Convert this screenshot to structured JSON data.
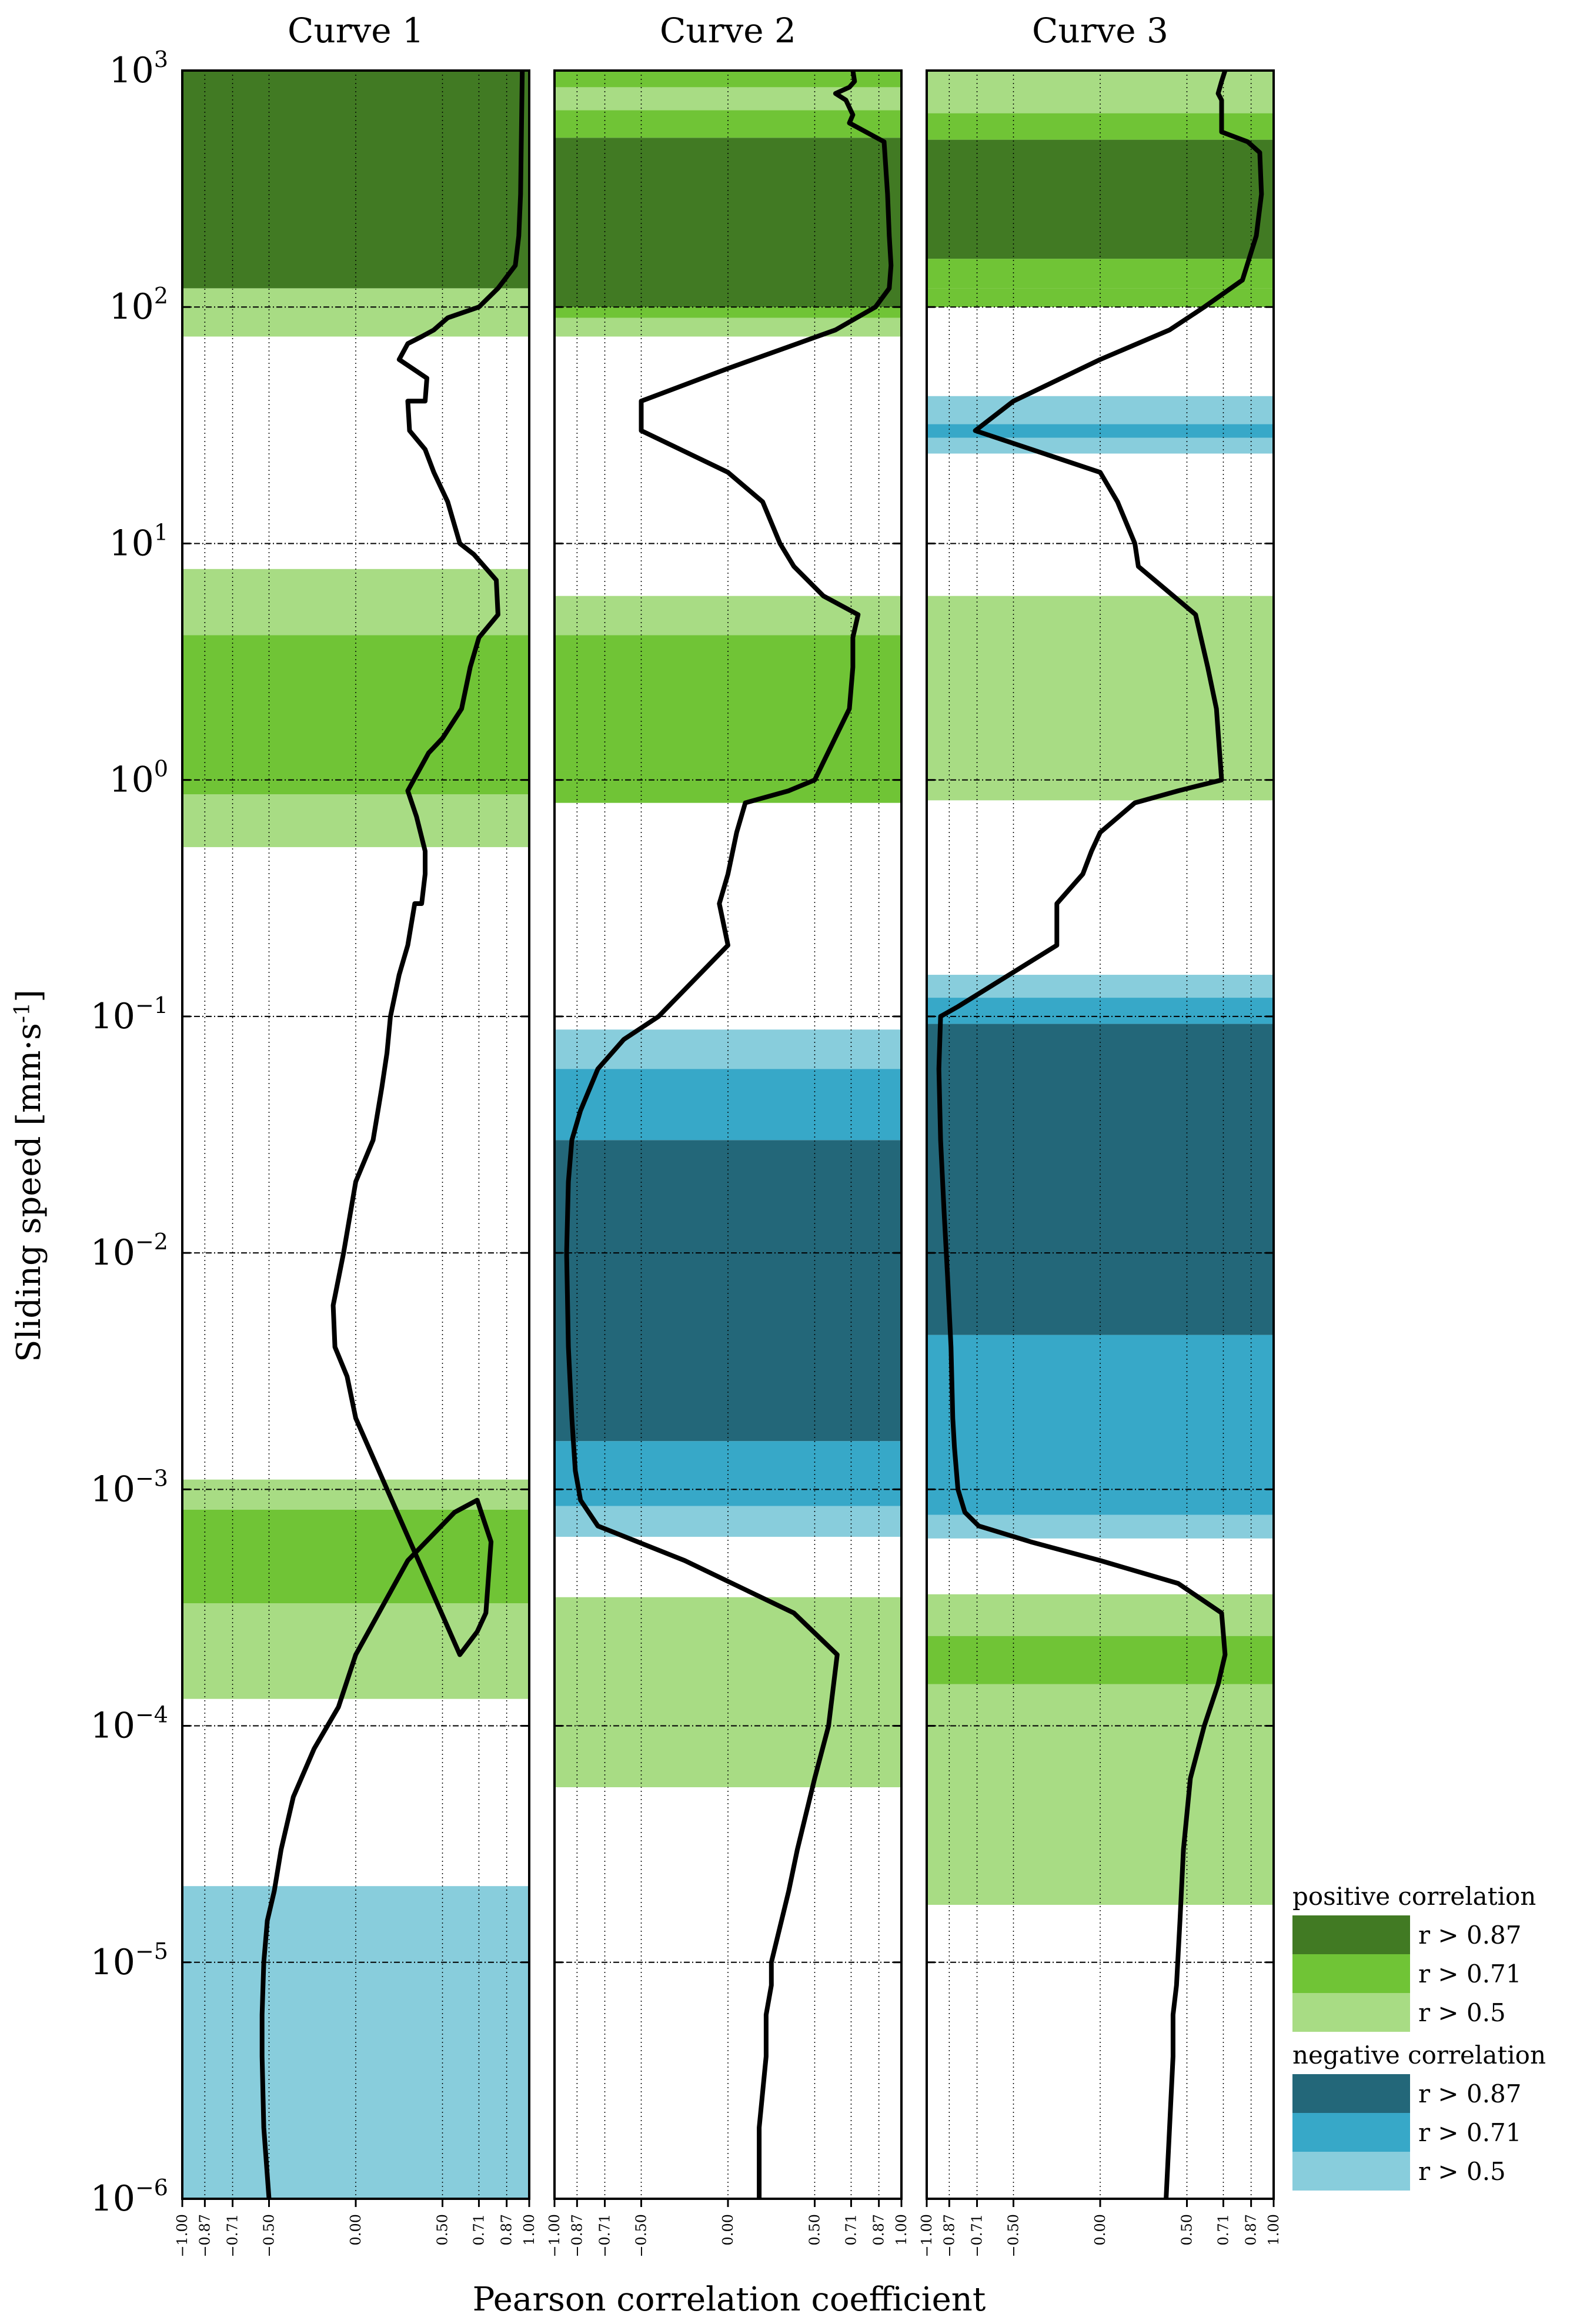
{
  "figure": {
    "ylabel_main": "Sliding speed [mm·s",
    "ylabel_sup": "-1",
    "ylabel_close": "]",
    "xlabel": "Pearson correlation coefficient"
  },
  "colors": {
    "pos_strong": "#417a23",
    "pos_medium": "#70c436",
    "pos_weak": "#a8dc84",
    "neg_strong": "#236779",
    "neg_medium": "#37a8c8",
    "neg_weak": "#88cddc",
    "curve": "#000000"
  },
  "legend": {
    "positive_title": "positive correlation",
    "negative_title": "negative correlation",
    "positive_items": [
      {
        "label": "r > 0.87",
        "color": "#417a23"
      },
      {
        "label": "r > 0.71",
        "color": "#70c436"
      },
      {
        "label": "r > 0.5",
        "color": "#a8dc84"
      }
    ],
    "negative_items": [
      {
        "label": "r > 0.87",
        "color": "#236779"
      },
      {
        "label": "r > 0.71",
        "color": "#37a8c8"
      },
      {
        "label": "r > 0.5",
        "color": "#88cddc"
      }
    ]
  },
  "chart_data": [
    {
      "type": "line",
      "title": "Curve 1",
      "xlabel": "Pearson correlation coefficient",
      "ylabel": "Sliding speed [mm·s-1]",
      "xlim": [
        -1.0,
        1.0
      ],
      "ylim": [
        1e-06,
        1000
      ],
      "yscale": "log",
      "x_ticks": [
        "-1.00",
        "-0.87",
        "-0.71",
        "-0.50",
        "0.00",
        "0.50",
        "0.71",
        "0.87",
        "1.00"
      ],
      "y_ticks": [
        {
          "base": "10",
          "exp": "−6"
        },
        {
          "base": "10",
          "exp": "−5"
        },
        {
          "base": "10",
          "exp": "−4"
        },
        {
          "base": "10",
          "exp": "−3"
        },
        {
          "base": "10",
          "exp": "−2"
        },
        {
          "base": "10",
          "exp": "−1"
        },
        {
          "base": "10",
          "exp": "0"
        },
        {
          "base": "10",
          "exp": "1"
        },
        {
          "base": "10",
          "exp": "2"
        },
        {
          "base": "10",
          "exp": "3"
        }
      ],
      "bands": [
        {
          "from": 75,
          "to": 120,
          "level": "pos_weak"
        },
        {
          "from": 120,
          "to": 1000,
          "level": "pos_strong"
        },
        {
          "from": 0.52,
          "to": 0.87,
          "level": "pos_weak"
        },
        {
          "from": 0.87,
          "to": 4.1,
          "level": "pos_medium"
        },
        {
          "from": 4.1,
          "to": 7.8,
          "level": "pos_weak"
        },
        {
          "from": 0.00013,
          "to": 0.00033,
          "level": "pos_weak"
        },
        {
          "from": 0.00033,
          "to": 0.00082,
          "level": "pos_medium"
        },
        {
          "from": 0.00082,
          "to": 0.0011,
          "level": "pos_weak"
        },
        {
          "from": 1e-06,
          "to": 2.1e-05,
          "level": "neg_weak"
        }
      ],
      "series": [
        {
          "x": [
            -0.5,
            -0.53,
            -0.54,
            -0.54,
            -0.53,
            -0.51,
            -0.47,
            -0.43,
            -0.36,
            -0.24,
            -0.1,
            0.0,
            0.3,
            0.57,
            0.7,
            0.78,
            0.75,
            0.7,
            0.6,
            0.0,
            -0.05,
            -0.12,
            -0.13,
            -0.07,
            0.0,
            0.1,
            0.15,
            0.18,
            0.2,
            0.25,
            0.3,
            0.34,
            0.38,
            0.4,
            0.4,
            0.35,
            0.3,
            0.42,
            0.5,
            0.61,
            0.66,
            0.71,
            0.82,
            0.81,
            0.68,
            0.6,
            0.53,
            0.45,
            0.4,
            0.31,
            0.3,
            0.4,
            0.41,
            0.25,
            0.3,
            0.38,
            0.45,
            0.53,
            0.71,
            0.82,
            0.92,
            0.94,
            0.95,
            0.96
          ],
          "y": [
            1e-06,
            2e-06,
            4e-06,
            6e-06,
            1e-05,
            1.5e-05,
            2e-05,
            3e-05,
            5e-05,
            8e-05,
            0.00012,
            0.0002,
            0.0005,
            0.0008,
            0.0009,
            0.0006,
            0.0003,
            0.00025,
            0.0002,
            0.002,
            0.003,
            0.004,
            0.006,
            0.01,
            0.02,
            0.03,
            0.05,
            0.07,
            0.1,
            0.15,
            0.2,
            0.3,
            0.3,
            0.4,
            0.5,
            0.7,
            0.9,
            1.3,
            1.5,
            2,
            3,
            4,
            5,
            7,
            9,
            10,
            15,
            20,
            25,
            30,
            40,
            40,
            50,
            60,
            70,
            75,
            80,
            90,
            100,
            120,
            150,
            200,
            300,
            1000
          ]
        }
      ]
    },
    {
      "type": "line",
      "title": "Curve 2",
      "xlim": [
        -1.0,
        1.0
      ],
      "ylim": [
        1e-06,
        1000
      ],
      "yscale": "log",
      "x_ticks": [
        "-1.00",
        "-0.87",
        "-0.71",
        "-0.50",
        "0.00",
        "0.50",
        "0.71",
        "0.87",
        "1.00"
      ],
      "bands": [
        {
          "from": 5.5e-05,
          "to": 0.00035,
          "level": "pos_weak"
        },
        {
          "from": 0.8,
          "to": 1.1,
          "level": "pos_medium"
        },
        {
          "from": 1.1,
          "to": 4.1,
          "level": "pos_medium"
        },
        {
          "from": 4.1,
          "to": 6.0,
          "level": "pos_weak"
        },
        {
          "from": 75,
          "to": 90,
          "level": "pos_weak"
        },
        {
          "from": 90,
          "to": 100,
          "level": "pos_medium"
        },
        {
          "from": 100,
          "to": 520,
          "level": "pos_strong"
        },
        {
          "from": 520,
          "to": 680,
          "level": "pos_medium"
        },
        {
          "from": 680,
          "to": 850,
          "level": "pos_weak"
        },
        {
          "from": 850,
          "to": 1000,
          "level": "pos_medium"
        },
        {
          "from": 0.00063,
          "to": 0.00085,
          "level": "neg_weak"
        },
        {
          "from": 0.00085,
          "to": 0.0016,
          "level": "neg_medium"
        },
        {
          "from": 0.0016,
          "to": 0.03,
          "level": "neg_strong"
        },
        {
          "from": 0.03,
          "to": 0.06,
          "level": "neg_medium"
        },
        {
          "from": 0.06,
          "to": 0.088,
          "level": "neg_weak"
        }
      ],
      "series": [
        {
          "x": [
            0.18,
            0.18,
            0.22,
            0.22,
            0.25,
            0.25,
            0.35,
            0.4,
            0.5,
            0.58,
            0.63,
            0.38,
            -0.25,
            -0.75,
            -0.85,
            -0.88,
            -0.9,
            -0.92,
            -0.93,
            -0.92,
            -0.9,
            -0.85,
            -0.75,
            -0.6,
            -0.4,
            0.0,
            -0.05,
            0.0,
            0.05,
            0.1,
            0.35,
            0.5,
            0.7,
            0.72,
            0.72,
            0.75,
            0.55,
            0.38,
            0.3,
            0.2,
            0.0,
            -0.5,
            -0.5,
            0.0,
            0.4,
            0.62,
            0.85,
            0.93,
            0.94,
            0.93,
            0.92,
            0.9,
            0.7,
            0.72,
            0.68,
            0.62,
            0.7,
            0.73,
            0.72
          ],
          "y": [
            1e-06,
            2e-06,
            4e-06,
            6e-06,
            8e-06,
            1e-05,
            2e-05,
            3e-05,
            6e-05,
            0.0001,
            0.0002,
            0.0003,
            0.0005,
            0.0007,
            0.0009,
            0.0012,
            0.002,
            0.004,
            0.01,
            0.02,
            0.03,
            0.04,
            0.06,
            0.08,
            0.1,
            0.2,
            0.3,
            0.4,
            0.6,
            0.8,
            0.9,
            1,
            2,
            3,
            4,
            5,
            6,
            8,
            10,
            15,
            20,
            30,
            40,
            55,
            70,
            80,
            100,
            120,
            150,
            200,
            300,
            500,
            600,
            650,
            750,
            800,
            850,
            900,
            1000
          ]
        }
      ]
    },
    {
      "type": "line",
      "title": "Curve 3",
      "xlim": [
        -1.0,
        1.0
      ],
      "ylim": [
        1e-06,
        1000
      ],
      "yscale": "log",
      "x_ticks": [
        "-1.00",
        "-0.87",
        "-0.71",
        "-0.50",
        "0.00",
        "0.50",
        "0.71",
        "0.87",
        "1.00"
      ],
      "bands": [
        {
          "from": 1.75e-05,
          "to": 0.00015,
          "level": "pos_weak"
        },
        {
          "from": 0.00015,
          "to": 0.00024,
          "level": "pos_medium"
        },
        {
          "from": 0.00024,
          "to": 0.00036,
          "level": "pos_weak"
        },
        {
          "from": 0.82,
          "to": 6.0,
          "level": "pos_weak"
        },
        {
          "from": 100,
          "to": 120,
          "level": "pos_medium"
        },
        {
          "from": 120,
          "to": 160,
          "level": "pos_medium"
        },
        {
          "from": 160,
          "to": 510,
          "level": "pos_strong"
        },
        {
          "from": 510,
          "to": 660,
          "level": "pos_medium"
        },
        {
          "from": 660,
          "to": 1000,
          "level": "pos_weak"
        },
        {
          "from": 24,
          "to": 28,
          "level": "neg_weak"
        },
        {
          "from": 28,
          "to": 32,
          "level": "neg_medium"
        },
        {
          "from": 32,
          "to": 42,
          "level": "neg_weak"
        },
        {
          "from": 0.00062,
          "to": 0.00078,
          "level": "neg_weak"
        },
        {
          "from": 0.00078,
          "to": 0.0045,
          "level": "neg_medium"
        },
        {
          "from": 0.0045,
          "to": 0.093,
          "level": "neg_strong"
        },
        {
          "from": 0.093,
          "to": 0.12,
          "level": "neg_medium"
        },
        {
          "from": 0.12,
          "to": 0.15,
          "level": "neg_weak"
        }
      ],
      "series": [
        {
          "x": [
            0.38,
            0.4,
            0.42,
            0.42,
            0.44,
            0.46,
            0.48,
            0.52,
            0.6,
            0.68,
            0.72,
            0.7,
            0.45,
            0.0,
            -0.4,
            -0.7,
            -0.78,
            -0.82,
            -0.84,
            -0.85,
            -0.86,
            -0.88,
            -0.9,
            -0.92,
            -0.93,
            -0.92,
            -0.82,
            -0.25,
            -0.25,
            -0.1,
            -0.05,
            0.0,
            0.2,
            0.45,
            0.7,
            0.67,
            0.62,
            0.55,
            0.22,
            0.2,
            0.1,
            0.0,
            -0.72,
            -0.5,
            0.0,
            0.4,
            0.6,
            0.82,
            0.9,
            0.93,
            0.92,
            0.85,
            0.7,
            0.7,
            0.68,
            0.7,
            0.72
          ],
          "y": [
            1e-06,
            2e-06,
            4e-06,
            6e-06,
            8e-06,
            1.5e-05,
            3e-05,
            6e-05,
            0.0001,
            0.00015,
            0.0002,
            0.0003,
            0.0004,
            0.0005,
            0.0006,
            0.0007,
            0.0008,
            0.001,
            0.0015,
            0.002,
            0.004,
            0.008,
            0.015,
            0.03,
            0.06,
            0.1,
            0.11,
            0.2,
            0.3,
            0.4,
            0.5,
            0.6,
            0.8,
            0.9,
            1,
            2,
            3,
            5,
            8,
            10,
            15,
            20,
            30,
            40,
            60,
            80,
            100,
            130,
            200,
            300,
            450,
            500,
            550,
            750,
            800,
            900,
            1000
          ]
        }
      ]
    }
  ]
}
